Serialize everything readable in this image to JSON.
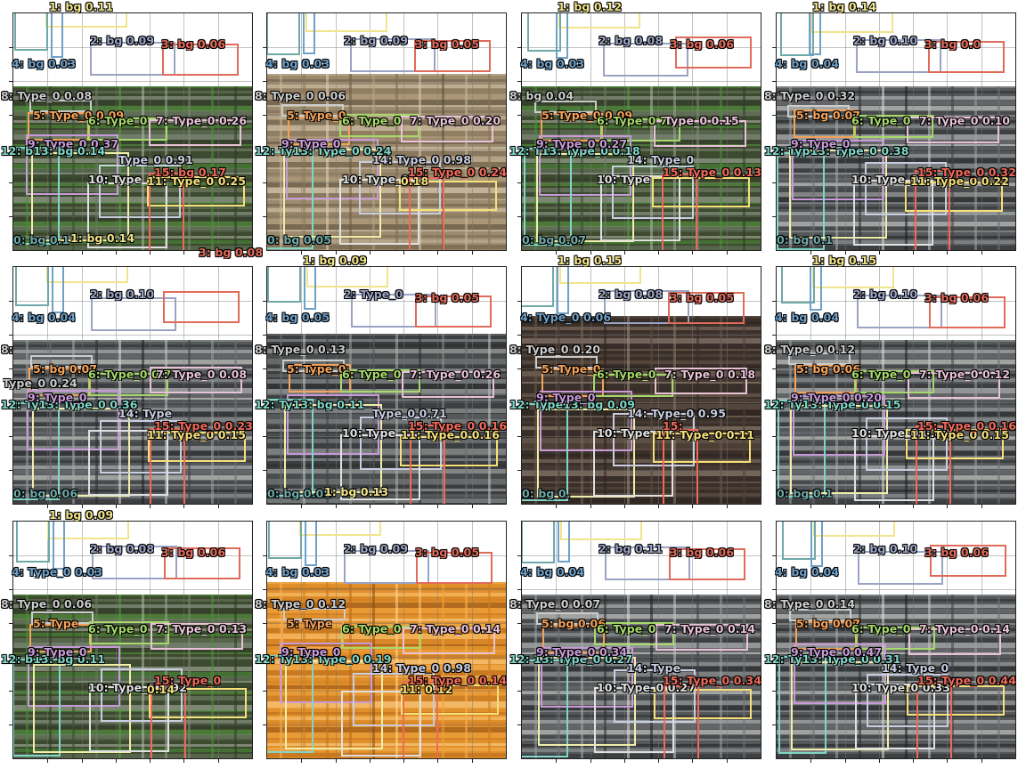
{
  "colors": {
    "c0": "#6fa8a8",
    "c1": "#f2e48a",
    "c2": "#9aa3c4",
    "c3": "#e06b5a",
    "c4": "#6fa0c8",
    "c5": "#f5a25a",
    "c6": "#a6d96a",
    "c7": "#e8c2d6",
    "c8": "#cccccc",
    "c9": "#c89bd8",
    "c10": "#e0e0e0",
    "c11": "#f5e07a",
    "c12": "#7fd6c8",
    "c13": "#f0eeaa",
    "c14": "#c8cde0",
    "c15": "#f06a5a"
  },
  "panels": [
    {
      "photo": "green",
      "labels": {
        "l1": "1: bg 0.11",
        "l2": "2: bg 0.09",
        "l3": "3: bg 0.06",
        "l4": "4: bg 0.03",
        "l8": "8: Type_0 0.08",
        "l5": "5: Type_0 0.09",
        "l6": "6: Type_0",
        "l7": "7: Type_0 0.26",
        "l9": "9: Type_0 0.37",
        "l12": "12: b13: bg 0.14",
        "l14": "Type_0 0.91",
        "l15": "15: bg 0.17",
        "l10": "10: Type",
        "l11": "11: Type_0 0.25",
        "l0": "0: bg 0.1",
        "l1b": "1: bg 0.14",
        "l3b": "3: bg 0.08"
      }
    },
    {
      "photo": "shelf",
      "labels": {
        "l3": "3: bg 0.05",
        "l2": "2: bg 0.09",
        "l4": "4: bg 0.03",
        "l8": "8: Type_0 0.06",
        "l5": "5: Type_0",
        "l6": "6: Type_0",
        "l7": "7: Type_0 0.20",
        "l12": "12: Ty13: Type_0 0.24",
        "l14": "14: Type_0 0.98",
        "l9": "9: Type_0",
        "l10": "10: Type_0",
        "l15": "15: Type_0 0.24",
        "l11": "0.18",
        "l0": "0: bg 0.05"
      }
    },
    {
      "photo": "green",
      "labels": {
        "l4": "4: bg 0.03",
        "l2": "2: bg 0.08",
        "l3": "3: bg 0.06",
        "l8": "8: bg 0.04",
        "l5": "5: Type_0 0.09",
        "l6": "6: Type_0 7:",
        "l7": "Type_0 0.15",
        "l12": "12: T13: Type_0 0.18",
        "l9": "9: Type_0 0.27",
        "l14": "14: Type_0",
        "l10": "10: Type",
        "l15": "15: Type_0 0.13",
        "l0": "0: bg 0.07",
        "l1": "1: bg 0.12"
      }
    },
    {
      "photo": "gray",
      "labels": {
        "l2": "2: bg 0.10",
        "l3": "3: bg 0.0",
        "l4": "4: bg 0.04",
        "l5": "5: bg 0.07",
        "l6": "6: Type_0",
        "l7": "7: Type_0 0.10",
        "l8": "8: Type_0 0.32",
        "l12": "12: Typ13: Type_0 0.38",
        "l9": "9: Type_0",
        "l10": "10: Type_0",
        "l11": "11: Type_0 0.22",
        "l15": "15: Type_0 0.32",
        "l0": "0: bg 0.1",
        "l1": "1: bg 0.14"
      }
    },
    {
      "photo": "gray",
      "labels": {
        "l2": "2: bg 0.10",
        "l4": "4: bg 0.04",
        "l5": "5: bg 0.07",
        "l8": "8:",
        "l6": "6: Type_0 0.7",
        "l7": "7: Type_0 0.08",
        "l8b": "Type_0 0.24",
        "l12": "12: Ty13: Type_0 0.36",
        "l9": "9: Type_0",
        "l14": "14: Type",
        "l11": "11: Type_0 0.15",
        "l15": "15: Type_0 0.23",
        "l0": "0: bg 0.06"
      }
    },
    {
      "photo": "mesh",
      "labels": {
        "l1": "1: bg 0.09",
        "l2": "2: Type_0",
        "l3": "3: bg 0.05",
        "l8": "8: Type_0 0.13",
        "l4": "4: bg 0.05",
        "l5": "5: Type_0",
        "l6": "6: Type_0",
        "l7": "7: Type_0 0.26",
        "l12": "12: Ty13: bg 0.11",
        "l14": "Type_0 0.71",
        "l15": "15: Type_0 0.16",
        "l10": "10: Type",
        "l11": "11: Type_0 0.16",
        "l0": "0: bg 0.08",
        "l1b": "1: bg 0.13"
      }
    },
    {
      "photo": "dark",
      "labels": {
        "l2": "2: bg 0.08",
        "l3": "3: bg 0.05",
        "l4": "4: Type_0 0.06",
        "l8": "8: Type_0 0.20",
        "l5": "5: Type_0",
        "l6": "6: Type_0",
        "l7": "7: Type_0 0.18",
        "l12": "12: Type13: bg 0.09",
        "l14": "14: Type_0 0.95",
        "l9": "9: Type_0",
        "l10": "10: Type",
        "l11": "11: Type_0 0.11",
        "l15": "15:",
        "l0": "0: bg 0.",
        "l1": "1: bg 0.15"
      }
    },
    {
      "photo": "gray",
      "labels": {
        "l3": "3: bg 0.06",
        "l2": "2: bg 0.10",
        "l4": "4: bg 0.04",
        "l5": "5: bg 0.06",
        "l8": "8: Type_0 0.12",
        "l6": "6: Type_0",
        "l7": "7: Type_0 0.12",
        "l12": "12: Ty13: Type_0 0.15",
        "l9": "9: Type_0 0.20",
        "l10": "10: Type_0 0.88",
        "l11": "11: Type_0 0.15",
        "l15": "15: Type_0 0.16",
        "l0": "0: bg 0.1",
        "l1": "1: bg 0.15"
      }
    },
    {
      "photo": "green",
      "labels": {
        "l1": "1: bg 0.09",
        "l3": "3: bg 0.06",
        "l2": "2: bg 0.08",
        "l4": "4: Type_0 0.03",
        "l8": "8: Type_0 0.06",
        "l5": "5: Type",
        "l6": "6: Type_0",
        "l7": "7: Type_0 0.13",
        "l12": "12: b13: bg 0.11",
        "l9": "9: Type_0",
        "l10": "10: Type_0 0.92",
        "l15": "15: Type_0",
        "l11": "0.14"
      }
    },
    {
      "photo": "orange",
      "labels": {
        "l2": "2: bg 0.09",
        "l3": "3: bg 0.05",
        "l4": "4: bg 0.03",
        "l8": "8: Type_0 0.12",
        "l5": "5: Type",
        "l6": "6: Type_0",
        "l7": "7: Type_0 0.14",
        "l12": "12: Ty13: Type_0 0.19",
        "l9": "9: Type_0",
        "l14": "14: Type_0 0.98",
        "l11": "11: 0.12",
        "l15": "15: Type_0 0.14"
      }
    },
    {
      "photo": "gray",
      "labels": {
        "l2": "2: bg 0.11",
        "l3": "3: bg 0.06",
        "l4": "4: bg 0.04",
        "l5": "5: bg 0.06",
        "l8": "8: Type_0 0.07",
        "l6": "6: Type_0",
        "l7": "7: Type_0 0.14",
        "l12": "12: 13: Type_0 0.27",
        "l9": "9: Type_0 0.34",
        "l14": "14: Type",
        "l10": "10: Type_0 0.27",
        "l15": "15: Type_0 0.34"
      }
    },
    {
      "photo": "gray",
      "labels": {
        "l3": "3: bg 0.06",
        "l2": "2: bg 0.10",
        "l4": "4: bg 0.04",
        "l5": "5: bg 0.07",
        "l8": "8: Type_0 0.14",
        "l6": "6: Type_0",
        "l7": "7: Type_0 0.14",
        "l12": "12: Ty13: Type_0 0.31",
        "l9": "9: Type_0 0.47",
        "l14": "14: Type_0",
        "l10": "10: Type_0 0.33",
        "l15": "15: Type_0 0.44"
      }
    }
  ]
}
